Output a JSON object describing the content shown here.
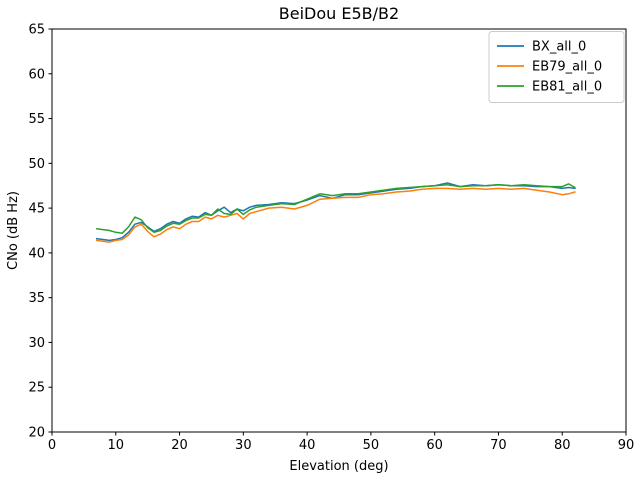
{
  "chart_data": {
    "type": "line",
    "title": "BeiDou E5B/B2",
    "xlabel": "Elevation (deg)",
    "ylabel": "CNo (dB Hz)",
    "xlim": [
      0,
      90
    ],
    "ylim": [
      20,
      65
    ],
    "xticks": [
      0,
      10,
      20,
      30,
      40,
      50,
      60,
      70,
      80,
      90
    ],
    "yticks": [
      20,
      25,
      30,
      35,
      40,
      45,
      50,
      55,
      60,
      65
    ],
    "grid": false,
    "legend_position": "upper right",
    "x": [
      7,
      8,
      9,
      10,
      11,
      12,
      13,
      14,
      15,
      16,
      17,
      18,
      19,
      20,
      21,
      22,
      23,
      24,
      25,
      26,
      27,
      28,
      29,
      30,
      31,
      32,
      34,
      36,
      38,
      40,
      42,
      44,
      46,
      48,
      50,
      52,
      54,
      56,
      58,
      60,
      62,
      64,
      66,
      68,
      70,
      72,
      74,
      76,
      78,
      80,
      81,
      82
    ],
    "series": [
      {
        "name": "BX_all_0",
        "color": "#1f77b4",
        "values": [
          41.6,
          41.5,
          41.4,
          41.5,
          41.7,
          42.3,
          43.2,
          43.4,
          42.9,
          42.4,
          42.7,
          43.2,
          43.5,
          43.3,
          43.8,
          44.1,
          44.0,
          44.5,
          44.2,
          44.7,
          45.1,
          44.5,
          44.9,
          44.7,
          45.1,
          45.3,
          45.4,
          45.6,
          45.5,
          45.9,
          46.4,
          46.1,
          46.5,
          46.5,
          46.7,
          46.9,
          47.1,
          47.2,
          47.4,
          47.5,
          47.8,
          47.4,
          47.6,
          47.5,
          47.6,
          47.5,
          47.5,
          47.4,
          47.4,
          47.2,
          47.3,
          47.2
        ]
      },
      {
        "name": "EB79_all_0",
        "color": "#ff7f0e",
        "values": [
          41.4,
          41.3,
          41.2,
          41.4,
          41.5,
          42.0,
          42.9,
          43.2,
          42.4,
          41.8,
          42.1,
          42.6,
          42.9,
          42.7,
          43.2,
          43.5,
          43.5,
          44.0,
          43.8,
          44.2,
          44.0,
          44.2,
          44.4,
          43.8,
          44.4,
          44.6,
          45.0,
          45.1,
          44.9,
          45.3,
          46.0,
          46.1,
          46.2,
          46.2,
          46.5,
          46.6,
          46.8,
          46.9,
          47.1,
          47.2,
          47.2,
          47.1,
          47.2,
          47.1,
          47.2,
          47.1,
          47.2,
          47.0,
          46.8,
          46.5,
          46.6,
          46.8
        ]
      },
      {
        "name": "EB81_all_0",
        "color": "#2ca02c",
        "values": [
          42.7,
          42.6,
          42.5,
          42.3,
          42.2,
          42.9,
          44.0,
          43.7,
          42.8,
          42.3,
          42.5,
          43.0,
          43.3,
          43.2,
          43.6,
          43.9,
          43.9,
          44.3,
          44.2,
          44.9,
          44.4,
          44.3,
          44.9,
          44.3,
          44.8,
          45.1,
          45.3,
          45.5,
          45.4,
          46.0,
          46.6,
          46.4,
          46.6,
          46.6,
          46.8,
          47.0,
          47.2,
          47.3,
          47.4,
          47.5,
          47.6,
          47.4,
          47.5,
          47.5,
          47.6,
          47.5,
          47.6,
          47.5,
          47.4,
          47.4,
          47.7,
          47.3
        ]
      }
    ]
  }
}
